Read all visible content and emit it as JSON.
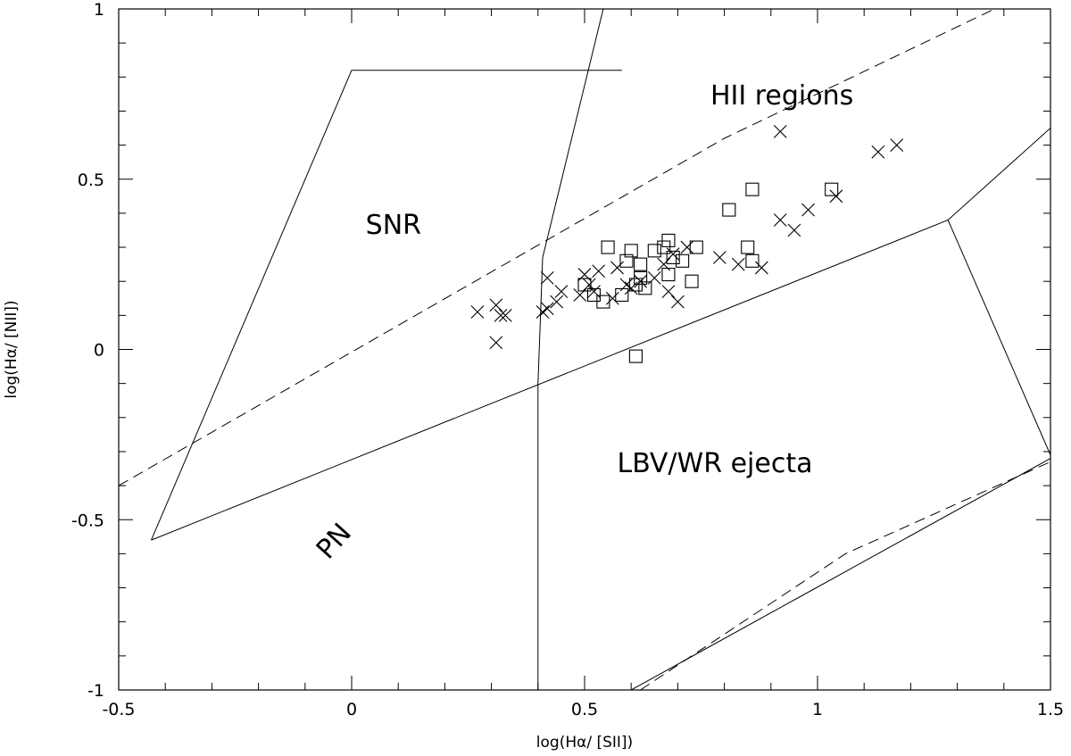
{
  "chart_data": {
    "type": "scatter",
    "xlabel": "log(Hα/ [SII])",
    "ylabel": "log(Hα/ [NII])",
    "xlim": [
      -0.5,
      1.5
    ],
    "ylim": [
      -1,
      1
    ],
    "x_ticks": [
      {
        "value": -0.5,
        "label": "-0.5"
      },
      {
        "value": 0,
        "label": "0"
      },
      {
        "value": 0.5,
        "label": "0.5"
      },
      {
        "value": 1,
        "label": "1"
      },
      {
        "value": 1.5,
        "label": "1.5"
      }
    ],
    "y_ticks": [
      {
        "value": -1,
        "label": "-1"
      },
      {
        "value": -0.5,
        "label": "-0.5"
      },
      {
        "value": 0,
        "label": "0"
      },
      {
        "value": 0.5,
        "label": "0.5"
      },
      {
        "value": 1,
        "label": "1"
      }
    ],
    "x_minor_step": 0.1,
    "y_minor_step": 0.1,
    "grid": false,
    "region_labels": [
      {
        "text": "SNR",
        "x": 0.03,
        "y": 0.34,
        "rotation": 0
      },
      {
        "text": "HII regions",
        "x": 0.77,
        "y": 0.72,
        "rotation": 0
      },
      {
        "text": "LBV/WR ejecta",
        "x": 0.57,
        "y": -0.36,
        "rotation": 0
      },
      {
        "text": "PN",
        "x": -0.05,
        "y": -0.62,
        "rotation": -48
      }
    ],
    "boundaries": [
      {
        "style": "solid",
        "points": [
          [
            -0.43,
            -0.56
          ],
          [
            0.0,
            0.82
          ],
          [
            0.58,
            0.82
          ]
        ]
      },
      {
        "style": "solid",
        "points": [
          [
            0.41,
            0.27
          ],
          [
            0.4,
            -0.1
          ],
          [
            0.4,
            -1.0
          ]
        ]
      },
      {
        "style": "solid",
        "points": [
          [
            0.41,
            0.27
          ],
          [
            0.54,
            1.0
          ]
        ]
      },
      {
        "style": "solid",
        "points": [
          [
            -0.43,
            -0.56
          ],
          [
            1.28,
            0.38
          ],
          [
            1.5,
            0.65
          ]
        ]
      },
      {
        "style": "solid",
        "points": [
          [
            1.28,
            0.38
          ],
          [
            1.5,
            -0.31
          ]
        ]
      },
      {
        "style": "solid",
        "points": [
          [
            0.6,
            -1.0
          ],
          [
            1.5,
            -0.32
          ]
        ]
      },
      {
        "style": "dashed",
        "points": [
          [
            -0.5,
            -0.4
          ],
          [
            0.8,
            0.62
          ],
          [
            1.38,
            1.0
          ]
        ]
      },
      {
        "style": "dashed",
        "points": [
          [
            0.62,
            -1.0
          ],
          [
            1.06,
            -0.6
          ],
          [
            1.5,
            -0.33
          ]
        ]
      }
    ],
    "series": [
      {
        "marker": "cross",
        "points": [
          [
            0.27,
            0.11
          ],
          [
            0.31,
            0.13
          ],
          [
            0.32,
            0.1
          ],
          [
            0.31,
            0.02
          ],
          [
            0.33,
            0.1
          ],
          [
            0.41,
            0.11
          ],
          [
            0.42,
            0.12
          ],
          [
            0.42,
            0.21
          ],
          [
            0.44,
            0.14
          ],
          [
            0.45,
            0.17
          ],
          [
            0.49,
            0.16
          ],
          [
            0.5,
            0.22
          ],
          [
            0.51,
            0.19
          ],
          [
            0.52,
            0.17
          ],
          [
            0.53,
            0.23
          ],
          [
            0.56,
            0.15
          ],
          [
            0.57,
            0.24
          ],
          [
            0.59,
            0.19
          ],
          [
            0.6,
            0.18
          ],
          [
            0.62,
            0.2
          ],
          [
            0.65,
            0.21
          ],
          [
            0.67,
            0.25
          ],
          [
            0.68,
            0.17
          ],
          [
            0.69,
            0.28
          ],
          [
            0.7,
            0.14
          ],
          [
            0.72,
            0.3
          ],
          [
            0.79,
            0.27
          ],
          [
            0.83,
            0.25
          ],
          [
            0.88,
            0.24
          ],
          [
            0.92,
            0.38
          ],
          [
            0.95,
            0.35
          ],
          [
            0.98,
            0.41
          ],
          [
            1.04,
            0.45
          ],
          [
            0.92,
            0.64
          ],
          [
            1.13,
            0.58
          ],
          [
            1.17,
            0.6
          ]
        ]
      },
      {
        "marker": "square",
        "points": [
          [
            0.5,
            0.19
          ],
          [
            0.52,
            0.16
          ],
          [
            0.54,
            0.14
          ],
          [
            0.55,
            0.3
          ],
          [
            0.58,
            0.16
          ],
          [
            0.59,
            0.26
          ],
          [
            0.6,
            0.29
          ],
          [
            0.61,
            0.19
          ],
          [
            0.62,
            0.21
          ],
          [
            0.62,
            0.25
          ],
          [
            0.63,
            0.18
          ],
          [
            0.65,
            0.29
          ],
          [
            0.67,
            0.3
          ],
          [
            0.68,
            0.32
          ],
          [
            0.68,
            0.22
          ],
          [
            0.69,
            0.27
          ],
          [
            0.71,
            0.26
          ],
          [
            0.73,
            0.2
          ],
          [
            0.74,
            0.3
          ],
          [
            0.81,
            0.41
          ],
          [
            0.85,
            0.3
          ],
          [
            0.86,
            0.26
          ],
          [
            0.86,
            0.47
          ],
          [
            1.03,
            0.47
          ],
          [
            0.61,
            -0.02
          ]
        ]
      }
    ]
  }
}
